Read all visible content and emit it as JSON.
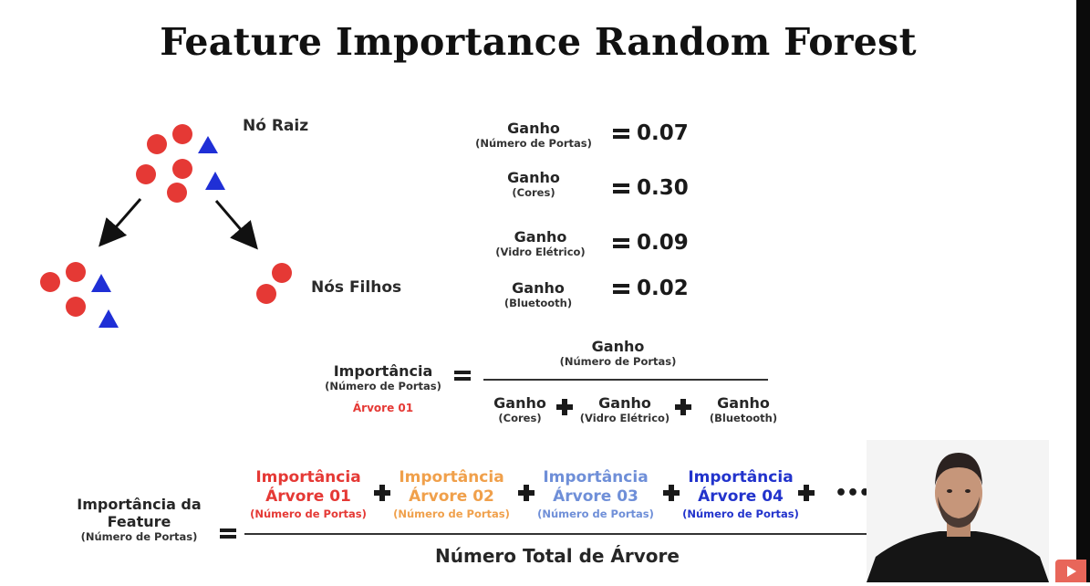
{
  "title": "Feature Importance Random Forest",
  "tree": {
    "root_label": "Nó Raiz",
    "children_label": "Nós Filhos",
    "colors": {
      "circle": "#e53935",
      "triangle": "#1f2fd6"
    }
  },
  "gains": [
    {
      "name": "Ganho",
      "feature": "(Número de Portas)",
      "value": "0.07"
    },
    {
      "name": "Ganho",
      "feature": "(Cores)",
      "value": "0.30"
    },
    {
      "name": "Ganho",
      "feature": "(Vidro Elétrico)",
      "value": "0.09"
    },
    {
      "name": "Ganho",
      "feature": "(Bluetooth)",
      "value": "0.02"
    }
  ],
  "tree_importance": {
    "label": "Importância",
    "feature": "(Número de Portas)",
    "tree": "Árvore 01",
    "tree_color": "#e53935",
    "numerator": {
      "name": "Ganho",
      "feature": "(Número de Portas)"
    },
    "denominator": [
      {
        "name": "Ganho",
        "feature": "(Cores)"
      },
      {
        "name": "Ganho",
        "feature": "(Vidro Elétrico)"
      },
      {
        "name": "Ganho",
        "feature": "(Bluetooth)"
      }
    ]
  },
  "feature_importance": {
    "label_line1": "Importância da",
    "label_line2": "Feature",
    "feature": "(Número de Portas)",
    "terms": [
      {
        "line1": "Importância",
        "line2": "Árvore 01",
        "sub": "(Número de Portas)",
        "color": "#e53935"
      },
      {
        "line1": "Importância",
        "line2": "Árvore 02",
        "sub": "(Número de Portas)",
        "color": "#f0a04b"
      },
      {
        "line1": "Importância",
        "line2": "Árvore 03",
        "sub": "(Número de Portas)",
        "color": "#6f8fd8"
      },
      {
        "line1": "Importância",
        "line2": "Árvore 04",
        "sub": "(Número de Portas)",
        "color": "#2233cc"
      }
    ],
    "ellipsis": "•••",
    "denominator": "Número Total de Árvore"
  },
  "presenter": {
    "icon": "presenter-video-icon"
  },
  "player": {
    "icon": "youtube-play-icon"
  }
}
